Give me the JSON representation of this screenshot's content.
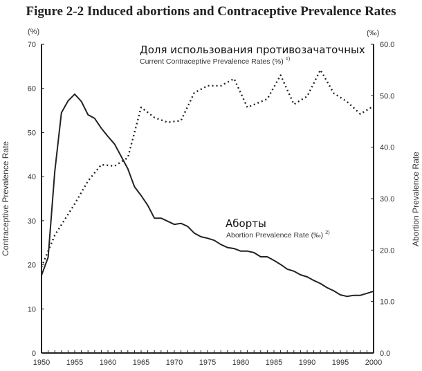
{
  "chart_data": {
    "type": "line",
    "title": "Figure 2-2 Induced abortions and Contraceptive Prevalence Rates",
    "xlabel": "",
    "xlim": [
      1950,
      2000
    ],
    "x_ticks": [
      "1950",
      "1955",
      "1960",
      "1965",
      "1970",
      "1975",
      "1980",
      "1985",
      "1990",
      "1995",
      "2000"
    ],
    "y_left": {
      "label": "Contraceptive Prevalence Rate",
      "unit": "(%)",
      "lim": [
        0,
        70
      ],
      "ticks": [
        "0",
        "10",
        "20",
        "30",
        "40",
        "50",
        "60",
        "70"
      ]
    },
    "y_right": {
      "label": "Abortion Prevalence Rate",
      "unit": "(‰)",
      "lim": [
        0,
        60
      ],
      "ticks": [
        "0.0",
        "10.0",
        "20.0",
        "30.0",
        "40.0",
        "50.0",
        "60.0"
      ]
    },
    "grid": false,
    "series": [
      {
        "name": "Current Contraceptive Prevalence Rates (%)",
        "axis": "left",
        "style": "dotted",
        "annotation_ru": "Доля использования противозачаточных",
        "annotation_en": "Current Contraceptive Prevalence Rates (%)",
        "footnote": "1)",
        "x": [
          1950,
          1952,
          1955,
          1957,
          1959,
          1961,
          1963,
          1965,
          1967,
          1969,
          1971,
          1973,
          1975,
          1977,
          1979,
          1981,
          1984,
          1986,
          1988,
          1990,
          1992,
          1994,
          1996,
          1998,
          2000
        ],
        "values": [
          19.5,
          26.7,
          33.8,
          39.0,
          42.7,
          42.4,
          44.3,
          55.7,
          53.4,
          52.3,
          52.7,
          59.0,
          60.6,
          60.6,
          62.2,
          55.7,
          57.6,
          63.0,
          56.4,
          58.2,
          64.2,
          58.9,
          57.0,
          54.2,
          56.0
        ]
      },
      {
        "name": "Abortion Prevalence Rate (‰)",
        "axis": "right",
        "style": "solid",
        "annotation_ru": "Аборты",
        "annotation_en": "Abortion Prevalence Rate (‰)",
        "footnote": "2)",
        "x": [
          1950,
          1951,
          1952,
          1953,
          1954,
          1955,
          1956,
          1957,
          1958,
          1959,
          1960,
          1961,
          1962,
          1963,
          1964,
          1965,
          1966,
          1967,
          1968,
          1969,
          1970,
          1971,
          1972,
          1973,
          1974,
          1975,
          1976,
          1977,
          1978,
          1979,
          1980,
          1981,
          1982,
          1983,
          1984,
          1985,
          1986,
          1987,
          1988,
          1989,
          1990,
          1991,
          1992,
          1993,
          1994,
          1995,
          1996,
          1997,
          1998,
          1999,
          2000
        ],
        "values": [
          15.1,
          18.6,
          35.3,
          46.7,
          49.0,
          50.3,
          48.9,
          46.3,
          45.6,
          43.7,
          42.1,
          40.6,
          38.2,
          35.8,
          32.3,
          30.6,
          28.7,
          26.2,
          26.2,
          25.6,
          25.0,
          25.2,
          24.6,
          23.3,
          22.6,
          22.3,
          21.9,
          21.1,
          20.5,
          20.3,
          19.8,
          19.8,
          19.5,
          18.7,
          18.7,
          18.0,
          17.2,
          16.3,
          15.9,
          15.2,
          14.8,
          14.1,
          13.5,
          12.7,
          12.1,
          11.3,
          11.0,
          11.2,
          11.2,
          11.6,
          12.0
        ]
      }
    ]
  }
}
